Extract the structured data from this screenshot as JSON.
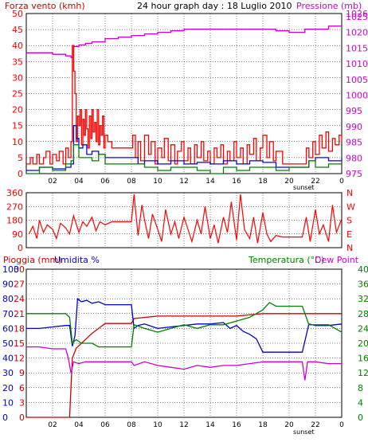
{
  "header": {
    "wind_title": "Forza vento (kmh)",
    "main_title": "24 hour graph day : 18 Luglio 2010",
    "pressure_title": "Pressione (mb)"
  },
  "bottom_header": {
    "rain_label": "Pioggia (mm)",
    "humidity_label": "Umidita %",
    "temp_label": "Temperatura (°C)",
    "dew_label": "Dew Point"
  },
  "sunset_label": "sunset",
  "x_ticks": [
    "02",
    "04",
    "06",
    "08",
    "10",
    "12",
    "14",
    "16",
    "18",
    "20",
    "22",
    "0"
  ],
  "colors": {
    "wind": "#ff0000",
    "wind_avg": "#0000ff",
    "wind_gust": "#008000",
    "pressure": "#cc00cc",
    "direction": "#ff0000",
    "rain": "#cc0000",
    "humidity": "#0000cc",
    "temperature": "#008000",
    "dew_point": "#cc00cc",
    "plot_bg": "#ffffff",
    "frame": "#000000"
  },
  "chart_data": [
    {
      "type": "line",
      "title": "24 hour graph day : 18 Luglio 2010",
      "ylabel": "Forza vento (kmh)",
      "y2label": "Pressione (mb)",
      "x_range": [
        0,
        24
      ],
      "ylim": [
        0,
        50
      ],
      "y_ticks": [
        0,
        5,
        10,
        15,
        20,
        25,
        30,
        35,
        40,
        45,
        50
      ],
      "y2lim": [
        975,
        1026
      ],
      "y2_ticks": [
        975,
        980,
        985,
        990,
        995,
        1000,
        1005,
        1010,
        1015,
        1020,
        1025,
        1026
      ],
      "grid": true,
      "series": [
        {
          "name": "Pressione (mb)",
          "axis": "right",
          "x": [
            0,
            1,
            2,
            3,
            3.4,
            3.6,
            4,
            4.5,
            5,
            6,
            7,
            8,
            9,
            10,
            11,
            12,
            13,
            14,
            15,
            16,
            17,
            18,
            19,
            20,
            21,
            21.2,
            22,
            23,
            24
          ],
          "values": [
            1013.5,
            1013.5,
            1013,
            1012.5,
            1012,
            1015.5,
            1016,
            1016.5,
            1017,
            1018,
            1018.5,
            1019,
            1019.5,
            1020,
            1020.5,
            1021,
            1021,
            1021,
            1021,
            1021,
            1021,
            1021,
            1020.5,
            1020,
            1020,
            1021,
            1021,
            1022,
            1022
          ]
        },
        {
          "name": "wind-gust",
          "axis": "left",
          "x": [
            0,
            0.3,
            0.5,
            0.8,
            1.0,
            1.3,
            1.5,
            1.8,
            2.0,
            2.3,
            2.5,
            2.8,
            3.0,
            3.2,
            3.4,
            3.5,
            3.6,
            3.7,
            3.8,
            3.9,
            4.0,
            4.1,
            4.2,
            4.3,
            4.4,
            4.5,
            4.6,
            4.7,
            4.8,
            4.9,
            5.0,
            5.1,
            5.2,
            5.3,
            5.4,
            5.5,
            5.6,
            5.7,
            5.8,
            5.9,
            6.0,
            6.2,
            6.5,
            7.0,
            7.5,
            8.0,
            8.1,
            8.3,
            8.5,
            8.7,
            9.0,
            9.3,
            9.5,
            9.8,
            10.0,
            10.3,
            10.5,
            10.8,
            11.0,
            11.3,
            11.5,
            11.8,
            12.0,
            12.3,
            12.5,
            12.8,
            13.0,
            13.3,
            13.5,
            13.8,
            14.0,
            14.3,
            14.5,
            14.8,
            15.0,
            15.3,
            15.5,
            15.8,
            16.0,
            16.3,
            16.5,
            16.8,
            17.0,
            17.3,
            17.5,
            17.8,
            18.0,
            18.3,
            18.5,
            18.8,
            19.0,
            19.5,
            20.0,
            21.0,
            21.3,
            21.5,
            21.8,
            22.0,
            22.3,
            22.5,
            22.8,
            23.0,
            23.3,
            23.5,
            23.8,
            24.0
          ],
          "values": [
            3,
            5,
            3,
            6,
            3,
            5,
            7,
            3,
            6,
            4,
            7,
            3,
            8,
            5,
            10,
            40,
            32,
            25,
            10,
            18,
            15,
            20,
            9,
            17,
            12,
            20,
            14,
            8,
            18,
            11,
            20,
            13,
            16,
            10,
            20,
            9,
            15,
            12,
            18,
            8,
            12,
            10,
            8,
            8,
            8,
            8,
            12,
            5,
            10,
            4,
            12,
            6,
            10,
            3,
            8,
            5,
            11,
            4,
            9,
            3,
            7,
            10,
            4,
            8,
            3,
            9,
            5,
            10,
            4,
            7,
            3,
            8,
            5,
            9,
            3,
            7,
            4,
            10,
            5,
            8,
            3,
            9,
            6,
            11,
            4,
            8,
            12,
            5,
            10,
            4,
            7,
            3,
            3,
            3,
            8,
            5,
            10,
            6,
            12,
            8,
            13,
            7,
            11,
            9,
            12,
            10
          ]
        },
        {
          "name": "wind-avg",
          "axis": "left",
          "x": [
            0,
            1,
            2,
            3,
            3.4,
            3.6,
            3.8,
            4.0,
            4.3,
            4.6,
            5.0,
            5.5,
            6.0,
            7.0,
            8.0,
            8.5,
            9.0,
            10.0,
            11.0,
            12.0,
            13.0,
            14.0,
            15.0,
            16.0,
            17.0,
            18.0,
            19.0,
            20.0,
            21.0,
            21.5,
            22.0,
            23.0,
            24.0
          ],
          "values": [
            1,
            2,
            1.5,
            2,
            3,
            15,
            11,
            8,
            9,
            6,
            7,
            6,
            5,
            5,
            5,
            3,
            4,
            3,
            4,
            3,
            3.5,
            3,
            4,
            3,
            4,
            3.5,
            2,
            2,
            2,
            4,
            5,
            4,
            5
          ]
        },
        {
          "name": "wind-speed",
          "axis": "left",
          "x": [
            0,
            1,
            2,
            3,
            3.4,
            3.6,
            4.0,
            4.5,
            5.0,
            5.5,
            6.0,
            7.0,
            8.0,
            9.0,
            10.0,
            11.0,
            12.0,
            13.0,
            14.0,
            15.0,
            16.0,
            17.0,
            18.0,
            19.0,
            20.0,
            21.0,
            21.5,
            22.0,
            23.0,
            24.0
          ],
          "values": [
            0,
            2,
            1,
            3,
            4,
            9,
            5,
            5,
            4,
            6,
            3,
            3,
            3,
            2,
            1,
            2,
            2,
            1,
            0,
            2,
            1,
            2,
            2,
            1,
            2,
            2,
            4,
            2,
            3,
            3
          ]
        }
      ]
    },
    {
      "type": "scatter",
      "ylabel": "direction",
      "x_range": [
        0,
        24
      ],
      "ylim": [
        0,
        360
      ],
      "y_ticks": [
        0,
        90,
        180,
        270,
        360
      ],
      "y2_ticks": [
        "N",
        "E",
        "S",
        "W",
        "N"
      ],
      "grid": true,
      "series": [
        {
          "name": "direction",
          "x": [
            0.2,
            0.5,
            0.8,
            1.0,
            1.3,
            1.6,
            2.0,
            2.3,
            2.6,
            3.0,
            3.3,
            3.6,
            4.0,
            4.3,
            4.6,
            5.0,
            5.3,
            5.6,
            6.0,
            6.5,
            7.0,
            7.5,
            8.0,
            8.2,
            8.5,
            8.8,
            9.0,
            9.3,
            9.6,
            10.0,
            10.3,
            10.6,
            11.0,
            11.3,
            11.6,
            12.0,
            12.3,
            12.6,
            13.0,
            13.3,
            13.6,
            14.0,
            14.3,
            14.6,
            15.0,
            15.3,
            15.6,
            16.0,
            16.3,
            16.6,
            17.0,
            17.3,
            17.6,
            18.0,
            18.3,
            18.6,
            19.0,
            19.5,
            20.0,
            21.0,
            21.3,
            21.6,
            22.0,
            22.3,
            22.6,
            23.0,
            23.3,
            23.6,
            24.0
          ],
          "values": [
            90,
            140,
            60,
            180,
            100,
            150,
            120,
            60,
            160,
            130,
            90,
            210,
            100,
            170,
            140,
            200,
            110,
            170,
            150,
            170,
            170,
            170,
            170,
            350,
            80,
            280,
            180,
            60,
            220,
            120,
            40,
            250,
            90,
            170,
            60,
            200,
            120,
            40,
            180,
            90,
            270,
            60,
            150,
            30,
            200,
            100,
            300,
            50,
            350,
            120,
            60,
            200,
            30,
            230,
            90,
            40,
            80,
            70,
            70,
            70,
            200,
            40,
            250,
            90,
            150,
            40,
            280,
            100,
            190
          ]
        }
      ]
    },
    {
      "type": "line",
      "ylabel": "Pioggia (mm)",
      "y2label": "Temperatura (°C)",
      "x_range": [
        0,
        24
      ],
      "rain_ticks": [
        0,
        3,
        6,
        9,
        12,
        15,
        18,
        21,
        24,
        27,
        30
      ],
      "humidity_ticks": [
        0,
        10,
        20,
        30,
        40,
        50,
        60,
        70,
        80,
        90,
        100
      ],
      "temp_ticks": [
        0,
        4,
        8,
        12,
        16,
        20,
        24,
        28,
        32,
        36,
        40
      ],
      "temp_ylim": [
        0,
        40
      ],
      "humidity_ylim": [
        0,
        100
      ],
      "rain_ylim": [
        0,
        30
      ],
      "grid": true,
      "series": [
        {
          "name": "Pioggia (mm)",
          "axis": "rain",
          "x": [
            0,
            3.3,
            3.5,
            3.8,
            4.2,
            4.6,
            5.0,
            5.5,
            6.0,
            8.0,
            8.2,
            10,
            12,
            14,
            16,
            18,
            20,
            22,
            24
          ],
          "values": [
            0,
            0,
            12,
            14,
            15,
            16,
            17,
            18,
            19,
            19,
            20,
            20.5,
            20.5,
            20.5,
            20.5,
            21,
            21,
            21,
            21
          ]
        },
        {
          "name": "Umidita %",
          "axis": "humidity",
          "x": [
            0,
            1,
            2,
            3,
            3.3,
            3.5,
            3.7,
            3.9,
            4.2,
            4.6,
            5.0,
            5.5,
            6.0,
            7.0,
            8.0,
            8.2,
            8.5,
            9,
            10,
            11,
            12,
            13,
            14,
            15,
            15.5,
            16,
            16.5,
            17,
            17.5,
            18,
            19,
            20,
            21,
            21.5,
            22,
            23,
            24
          ],
          "values": [
            60,
            60,
            61,
            62,
            62,
            48,
            55,
            80,
            78,
            79,
            77,
            78,
            76,
            76,
            76,
            60,
            62,
            63,
            60,
            61,
            62,
            63,
            63,
            64,
            60,
            62,
            58,
            56,
            53,
            44,
            44,
            44,
            44,
            63,
            62,
            62,
            63
          ]
        },
        {
          "name": "Temperatura (°C)",
          "axis": "temp",
          "x": [
            0,
            1,
            2,
            3,
            3.3,
            3.5,
            3.8,
            4.2,
            4.6,
            5.0,
            5.5,
            6.0,
            7.0,
            8.0,
            8.2,
            9,
            10,
            11,
            12,
            13,
            14,
            15,
            16,
            17,
            18,
            18.5,
            19,
            20,
            21,
            21.5,
            22,
            23,
            24
          ],
          "values": [
            28,
            28,
            28,
            28,
            27,
            20,
            21,
            20,
            20,
            20,
            19,
            19,
            19,
            19,
            25,
            24,
            23,
            24,
            25,
            24,
            25,
            25,
            26,
            27,
            29,
            31,
            30,
            30,
            30,
            25,
            25,
            25,
            23
          ]
        },
        {
          "name": "Dew Point",
          "axis": "temp",
          "x": [
            0,
            1,
            2,
            3,
            3.2,
            3.4,
            3.6,
            4.0,
            4.5,
            5.0,
            6.0,
            7.0,
            8.0,
            8.2,
            9,
            10,
            11,
            12,
            13,
            14,
            15,
            16,
            17,
            18,
            19,
            20,
            21,
            21.2,
            21.4,
            22,
            23,
            24
          ],
          "values": [
            19,
            19,
            18.5,
            18.5,
            16,
            12,
            15,
            14.5,
            15,
            15,
            15,
            15,
            15,
            14,
            15,
            14,
            13.5,
            13,
            14,
            13.5,
            14,
            14,
            14.5,
            15,
            15,
            15,
            15,
            10,
            15,
            15,
            14.5,
            14.5
          ]
        }
      ]
    }
  ]
}
